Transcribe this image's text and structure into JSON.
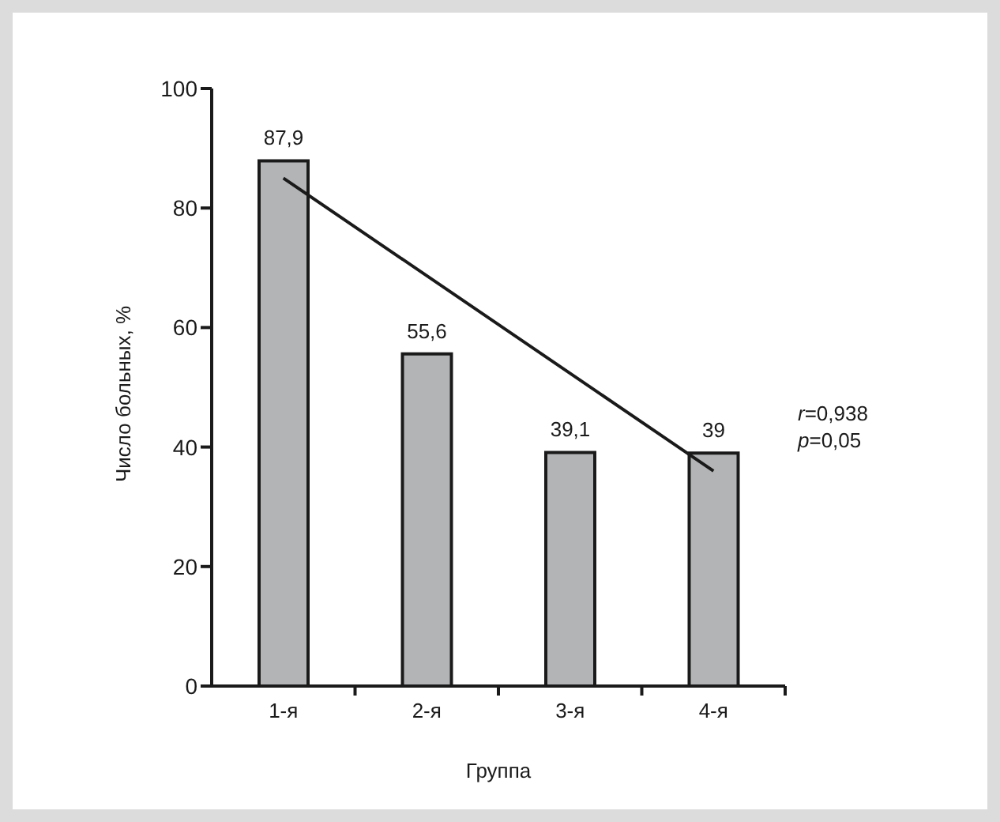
{
  "chart_data": {
    "type": "bar",
    "xlabel": "Группа",
    "ylabel": "Число больных, %",
    "categories": [
      "1-я",
      "2-я",
      "3-я",
      "4-я"
    ],
    "series": [
      {
        "color": "#b3b4b6",
        "values": [
          87.9,
          55.6,
          39.1,
          39
        ],
        "value_labels": [
          "87,9",
          "55,6",
          "39,1",
          "39"
        ]
      },
      {
        "type": "line",
        "color": "#1a1a1a",
        "x": [
          "1-я",
          "4-я"
        ],
        "values": [
          85,
          36
        ]
      }
    ],
    "ylim": [
      0,
      100
    ],
    "yticks": [
      0,
      20,
      40,
      60,
      80,
      100
    ],
    "marker": "none",
    "annotations": [
      "r=0,938",
      "p=0,05"
    ]
  }
}
